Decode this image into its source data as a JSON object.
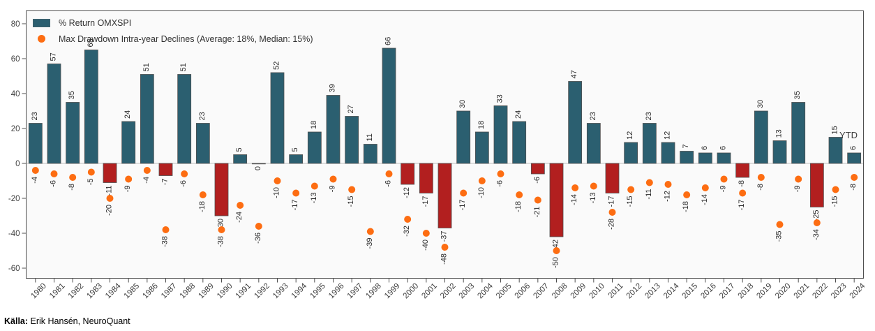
{
  "legend": {
    "return_label": "% Return OMXSPI",
    "drawdown_label": "Max Drawdown Intra-year Declines (Average: 18%, Median: 15%)"
  },
  "annotations": {
    "ytd": "YTD"
  },
  "footer": {
    "source_label": "Källa:",
    "source_value": " Erik Hansén, NeuroQuant"
  },
  "colors": {
    "bar_positive": "#2b5f70",
    "bar_negative": "#b21f1f",
    "drawdown_dot": "#fd6d12",
    "frame": "#4f4f4f",
    "plot_background": "#fafafa",
    "zero_line": "#bdbdbd",
    "axis_text": "#3d3d3d",
    "value_text": "#2b2b2b"
  },
  "chart_data": {
    "type": "bar",
    "title": "",
    "xlabel": "",
    "ylabel": "",
    "ylim": [
      -67,
      88
    ],
    "yticks": [
      80,
      60,
      40,
      20,
      0,
      -20,
      -40,
      -60
    ],
    "grid": false,
    "legend_position": "top-left",
    "zero_line": true,
    "last_category_annotation": "YTD",
    "categories": [
      "1980",
      "1981",
      "1982",
      "1983",
      "1984",
      "1985",
      "1986",
      "1987",
      "1988",
      "1989",
      "1990",
      "1991",
      "1992",
      "1993",
      "1994",
      "1995",
      "1996",
      "1997",
      "1998",
      "1999",
      "2000",
      "2001",
      "2002",
      "2003",
      "2004",
      "2005",
      "2006",
      "2007",
      "2008",
      "2009",
      "2010",
      "2011",
      "2012",
      "2013",
      "2014",
      "2015",
      "2016",
      "2017",
      "2018",
      "2019",
      "2020",
      "2021",
      "2022",
      "2023",
      "2024"
    ],
    "series": [
      {
        "name": "% Return OMXSPI",
        "kind": "bar",
        "values": [
          23,
          57,
          35,
          65,
          -11,
          24,
          51,
          -7,
          51,
          23,
          -30,
          5,
          0,
          52,
          5,
          18,
          39,
          27,
          11,
          66,
          -12,
          -17,
          -37,
          30,
          18,
          33,
          24,
          -6,
          -42,
          47,
          23,
          -17,
          12,
          23,
          12,
          7,
          6,
          6,
          -8,
          30,
          13,
          35,
          -25,
          15,
          6
        ]
      },
      {
        "name": "Max Drawdown Intra-year Declines",
        "kind": "scatter",
        "values": [
          -4,
          -6,
          -8,
          -5,
          -20,
          -9,
          -4,
          -38,
          -6,
          -18,
          -38,
          -24,
          -36,
          -10,
          -17,
          -13,
          -9,
          -15,
          -39,
          -6,
          -32,
          -40,
          -48,
          -17,
          -10,
          -6,
          -18,
          -21,
          -50,
          -14,
          -13,
          -28,
          -15,
          -11,
          -12,
          -18,
          -14,
          -9,
          -17,
          -8,
          -35,
          -9,
          -34,
          -15,
          -8
        ]
      }
    ]
  }
}
